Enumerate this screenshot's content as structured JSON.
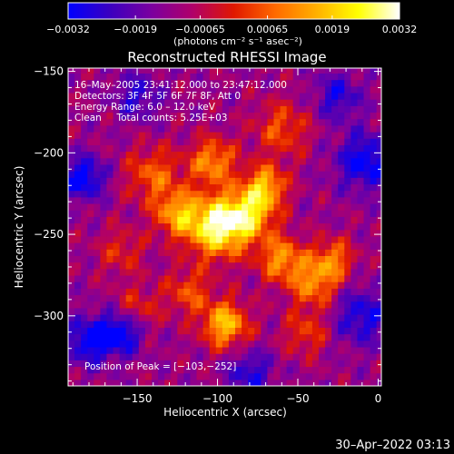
{
  "chart_data": {
    "type": "heatmap",
    "title": "Reconstructed RHESSI Image",
    "xlabel": "Heliocentric X (arcsec)",
    "ylabel": "Heliocentric Y (arcsec)",
    "xlim": [
      -193,
      2
    ],
    "ylim": [
      -343,
      -148
    ],
    "x_ticks": [
      -150,
      -100,
      -50,
      0
    ],
    "x_tick_labels": [
      "−150",
      "−100",
      "−50",
      "0"
    ],
    "y_ticks": [
      -150,
      -200,
      -250,
      -300
    ],
    "y_tick_labels": [
      "−150",
      "−200",
      "−250",
      "−300"
    ],
    "colorbar": {
      "range": [
        -0.0032,
        0.0032
      ],
      "tick_values": [
        -0.0032,
        -0.0019,
        -0.00065,
        0.00065,
        0.0019,
        0.0032
      ],
      "tick_labels": [
        "−0.0032",
        "−0.0019",
        "−0.00065",
        "0.00065",
        "0.0019",
        "0.0032"
      ],
      "units_label": "(photons cm⁻² s⁻¹ asec⁻²)",
      "colormap": [
        "#0000ff",
        "#3a00c0",
        "#7a00a0",
        "#b0006a",
        "#e01800",
        "#ff6a00",
        "#ffb000",
        "#ffff00",
        "#ffffff"
      ]
    },
    "annotations": [
      "16–May–2005 23:41:12.000 to 23:47:12.000",
      "Detectors: 3F 4F 5F 6F 7F 8F, Att 0",
      "Energy Range: 6.0 – 12.0 keV",
      "Clean     Total counts: 5.25E+03"
    ],
    "peak_label": "Position of Peak = [−103,−252]",
    "peak_position": [
      -103,
      -252
    ],
    "blobs": [
      {
        "x": -100,
        "y": -245,
        "intensity": 1.0,
        "sigma": 13
      },
      {
        "x": -125,
        "y": -237,
        "intensity": 0.6,
        "sigma": 10
      },
      {
        "x": -80,
        "y": -237,
        "intensity": 0.7,
        "sigma": 11
      },
      {
        "x": -70,
        "y": -220,
        "intensity": 0.65,
        "sigma": 9
      },
      {
        "x": -103,
        "y": -205,
        "intensity": 0.6,
        "sigma": 10
      },
      {
        "x": -140,
        "y": -213,
        "intensity": 0.45,
        "sigma": 12
      },
      {
        "x": -60,
        "y": -185,
        "intensity": 0.4,
        "sigma": 12
      },
      {
        "x": -95,
        "y": -305,
        "intensity": 0.75,
        "sigma": 10
      },
      {
        "x": -118,
        "y": -285,
        "intensity": 0.4,
        "sigma": 10
      },
      {
        "x": -60,
        "y": -265,
        "intensity": 0.6,
        "sigma": 10
      },
      {
        "x": -40,
        "y": -280,
        "intensity": 0.55,
        "sigma": 10
      },
      {
        "x": -28,
        "y": -265,
        "intensity": 0.5,
        "sigma": 9
      },
      {
        "x": -45,
        "y": -310,
        "intensity": 0.35,
        "sigma": 10
      },
      {
        "x": -160,
        "y": -260,
        "intensity": 0.3,
        "sigma": 10
      },
      {
        "x": -150,
        "y": -295,
        "intensity": 0.3,
        "sigma": 10
      }
    ],
    "negative_regions": [
      {
        "x": -183,
        "y": -215,
        "intensity": -0.6,
        "sigma": 9
      },
      {
        "x": -180,
        "y": -315,
        "intensity": -0.55,
        "sigma": 10
      },
      {
        "x": -160,
        "y": -310,
        "intensity": -0.6,
        "sigma": 9
      },
      {
        "x": -8,
        "y": -205,
        "intensity": -0.55,
        "sigma": 12
      },
      {
        "x": -10,
        "y": -300,
        "intensity": -0.45,
        "sigma": 12
      },
      {
        "x": -25,
        "y": -165,
        "intensity": -0.4,
        "sigma": 10
      },
      {
        "x": -80,
        "y": -335,
        "intensity": -0.4,
        "sigma": 10
      },
      {
        "x": -150,
        "y": -165,
        "intensity": -0.35,
        "sigma": 10
      }
    ]
  },
  "footer": {
    "timestamp": "30–Apr–2022 03:13"
  }
}
